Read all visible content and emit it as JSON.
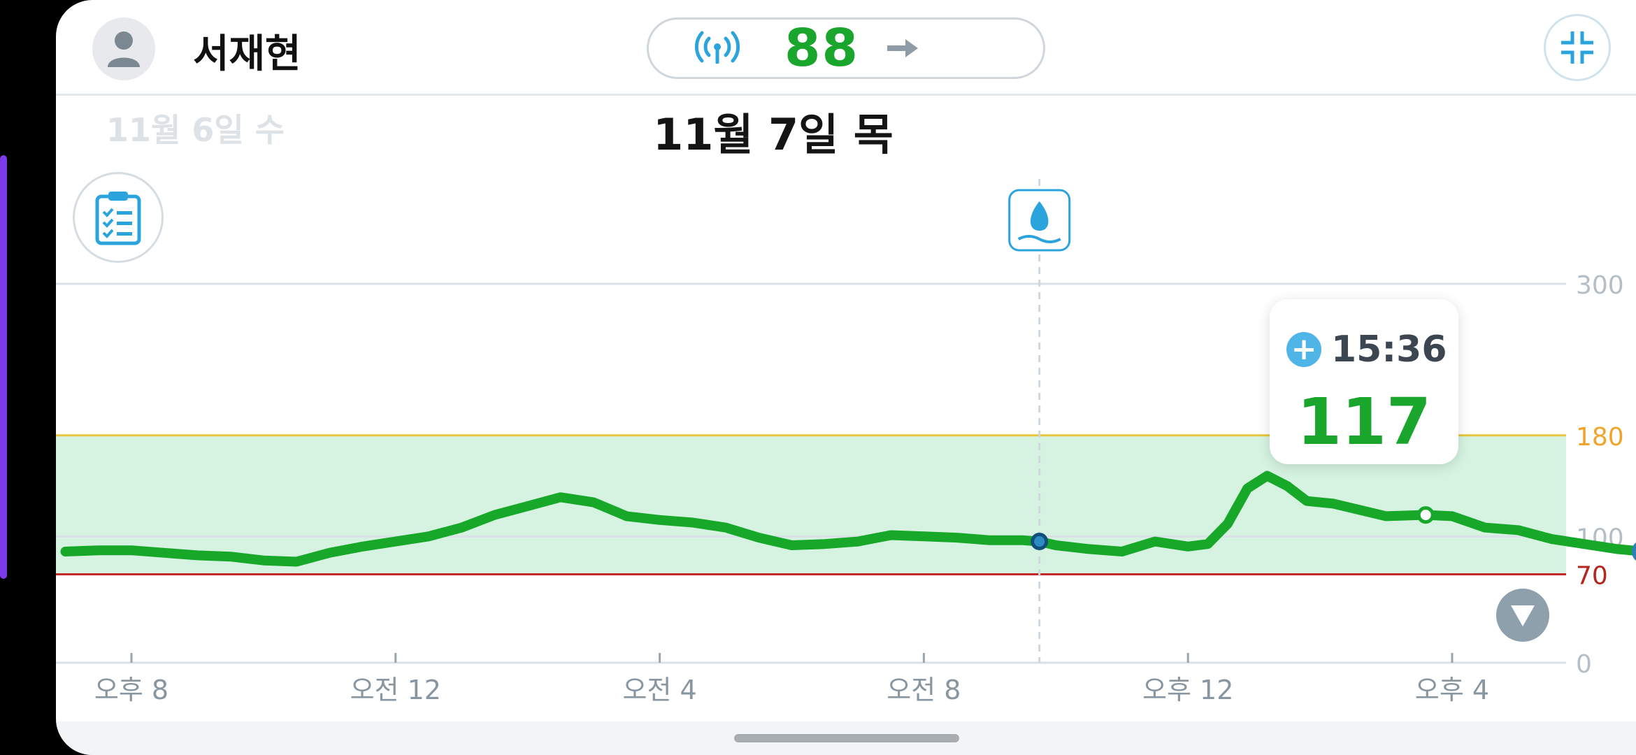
{
  "header": {
    "user_name": "서재현",
    "current_reading": "88",
    "trend_icon": "arrow-right-icon",
    "signal_icon": "signal-icon",
    "collapse_icon": "collapse-icon"
  },
  "dates": {
    "previous": "11월 6일 수",
    "current": "11월 7일 목"
  },
  "tooltip": {
    "time": "15:36",
    "value": "117"
  },
  "colors": {
    "glucose_line": "#17a829",
    "target_band": "#d6f3e1",
    "high_line": "#e8c63a",
    "low_line": "#c62828",
    "accent_blue": "#2ba4dd"
  },
  "chart_data": {
    "type": "line",
    "y_ticks": [
      {
        "value": 300,
        "label": "300"
      },
      {
        "value": 180,
        "label": "180"
      },
      {
        "value": 100,
        "label": "100"
      },
      {
        "value": 70,
        "label": "70"
      },
      {
        "value": 0,
        "label": "0"
      }
    ],
    "x_ticks": [
      {
        "hour": 20,
        "label": "오후 8"
      },
      {
        "hour": 24,
        "label": "오전 12"
      },
      {
        "hour": 28,
        "label": "오전 4"
      },
      {
        "hour": 32,
        "label": "오전 8"
      },
      {
        "hour": 36,
        "label": "오후 12"
      },
      {
        "hour": 40,
        "label": "오후 4"
      }
    ],
    "x_range_hours": [
      19.0,
      43.0
    ],
    "ylim": [
      0,
      300
    ],
    "target_range": [
      70,
      180
    ],
    "event_marker_hour": 33.75,
    "selected_point": {
      "hour": 39.6,
      "value": 117
    },
    "series": [
      {
        "values": [
          [
            19.0,
            88
          ],
          [
            19.5,
            89
          ],
          [
            20.0,
            89
          ],
          [
            20.5,
            87
          ],
          [
            21.0,
            85
          ],
          [
            21.5,
            84
          ],
          [
            22.0,
            81
          ],
          [
            22.5,
            80
          ],
          [
            23.0,
            87
          ],
          [
            23.5,
            92
          ],
          [
            24.0,
            96
          ],
          [
            24.5,
            100
          ],
          [
            25.0,
            107
          ],
          [
            25.5,
            117
          ],
          [
            26.0,
            124
          ],
          [
            26.5,
            131
          ],
          [
            27.0,
            127
          ],
          [
            27.5,
            116
          ],
          [
            28.0,
            113
          ],
          [
            28.5,
            111
          ],
          [
            29.0,
            107
          ],
          [
            29.5,
            99
          ],
          [
            30.0,
            93
          ],
          [
            30.5,
            94
          ],
          [
            31.0,
            96
          ],
          [
            31.5,
            101
          ],
          [
            32.0,
            100
          ],
          [
            32.5,
            99
          ],
          [
            33.0,
            97
          ],
          [
            33.5,
            97
          ],
          [
            33.75,
            96
          ],
          [
            34.0,
            93
          ],
          [
            34.5,
            90
          ],
          [
            35.0,
            88
          ],
          [
            35.5,
            96
          ],
          [
            36.0,
            92
          ],
          [
            36.3,
            94
          ],
          [
            36.6,
            110
          ],
          [
            36.9,
            138
          ],
          [
            37.2,
            148
          ],
          [
            37.5,
            140
          ],
          [
            37.8,
            128
          ],
          [
            38.2,
            126
          ],
          [
            38.6,
            121
          ],
          [
            39.0,
            116
          ],
          [
            39.6,
            117
          ],
          [
            40.0,
            116
          ],
          [
            40.5,
            107
          ],
          [
            41.0,
            105
          ],
          [
            41.5,
            98
          ],
          [
            42.0,
            94
          ],
          [
            42.5,
            90
          ],
          [
            42.9,
            88
          ]
        ]
      }
    ]
  }
}
